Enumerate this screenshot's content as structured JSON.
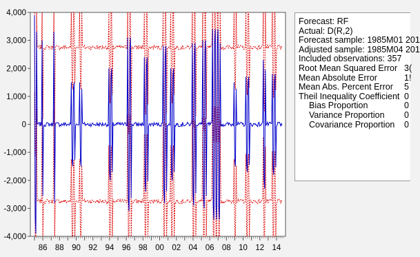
{
  "chart_data": {
    "type": "line",
    "x_tick_labels": [
      "86",
      "88",
      "90",
      "92",
      "94",
      "96",
      "98",
      "00",
      "02",
      "04",
      "06",
      "08",
      "10",
      "12",
      "14"
    ],
    "y_tick_labels": [
      "4,000",
      "3,000",
      "2,000",
      "1,000",
      "0",
      "-1,000",
      "-2,000",
      "-3,000",
      "-4,000"
    ],
    "ylim": [
      -4000,
      4000
    ],
    "xlim": [
      1985.0,
      2014.75
    ],
    "grid": false,
    "legend": "none",
    "series": [
      {
        "color": "#0000cc",
        "style": "solid",
        "values_note_free": true
      },
      {
        "color": "#dd0000",
        "style": "dashed"
      },
      {
        "color": "#dd0000",
        "style": "dashed"
      }
    ],
    "forecast": {
      "center_level": 0,
      "band_upper_level": 2750,
      "band_lower_level": -2750,
      "spike_clusters": [
        {
          "x": 1985.0,
          "amp": 3900,
          "n": 2
        },
        {
          "x": 1985.9,
          "amp": 3000,
          "n": 1
        },
        {
          "x": 1987.3,
          "amp": 3300,
          "n": 1
        },
        {
          "x": 1989.4,
          "amp": 1500,
          "n": 3
        },
        {
          "x": 1990.4,
          "amp": 1500,
          "n": 2
        },
        {
          "x": 1993.9,
          "amp": 2000,
          "n": 3
        },
        {
          "x": 1996.2,
          "amp": 3100,
          "n": 3
        },
        {
          "x": 1998.2,
          "amp": 2400,
          "n": 3
        },
        {
          "x": 2000.4,
          "amp": 2800,
          "n": 3
        },
        {
          "x": 2001.3,
          "amp": 2000,
          "n": 3
        },
        {
          "x": 2003.9,
          "amp": 2900,
          "n": 3
        },
        {
          "x": 2005.2,
          "amp": 3000,
          "n": 3
        },
        {
          "x": 2006.3,
          "amp": 3400,
          "n": 6
        },
        {
          "x": 2008.9,
          "amp": 1500,
          "n": 2
        },
        {
          "x": 2010.3,
          "amp": 1700,
          "n": 3
        },
        {
          "x": 2012.4,
          "amp": 2300,
          "n": 2
        },
        {
          "x": 2013.5,
          "amp": 1800,
          "n": 3
        }
      ]
    }
  },
  "stats": {
    "info": [
      "Forecast: RF",
      "Actual: D(R,2)",
      "Forecast sample: 1985M01 201",
      "Adjusted sample: 1985M04 201",
      "Included observations: 357"
    ],
    "rows": [
      {
        "label": "Root Mean Squared Error",
        "value": "3(",
        "indent": false
      },
      {
        "label": "Mean Absolute Error",
        "value": "1!",
        "indent": false
      },
      {
        "label": "Mean Abs. Percent Error",
        "value": "5",
        "indent": false
      },
      {
        "label": "Theil Inequality Coefficient",
        "value": "0",
        "indent": false
      },
      {
        "label": "Bias Proportion",
        "value": "0",
        "indent": true
      },
      {
        "label": "Variance Proportion",
        "value": "0",
        "indent": true
      },
      {
        "label": "Covariance Proportion",
        "value": "0",
        "indent": true
      }
    ]
  }
}
